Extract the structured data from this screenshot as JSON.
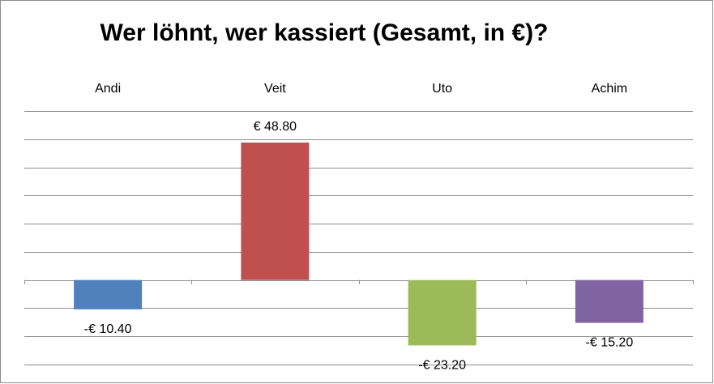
{
  "chart_data": {
    "type": "bar",
    "title": "Wer löhnt, wer kassiert (Gesamt, in €)?",
    "categories": [
      "Andi",
      "Veit",
      "Uto",
      "Achim"
    ],
    "values": [
      -10.4,
      48.8,
      -23.2,
      -15.2
    ],
    "value_labels": [
      "-€ 10.40",
      "€ 48.80",
      "-€ 23.20",
      "-€ 15.20"
    ],
    "colors": [
      "#4f81bd",
      "#c0504d",
      "#9bbb59",
      "#8064a2"
    ],
    "ylim": [
      -30,
      60
    ],
    "yticks": [
      -30,
      -20,
      -10,
      0,
      10,
      20,
      30,
      40,
      50,
      60
    ],
    "grid": true
  }
}
